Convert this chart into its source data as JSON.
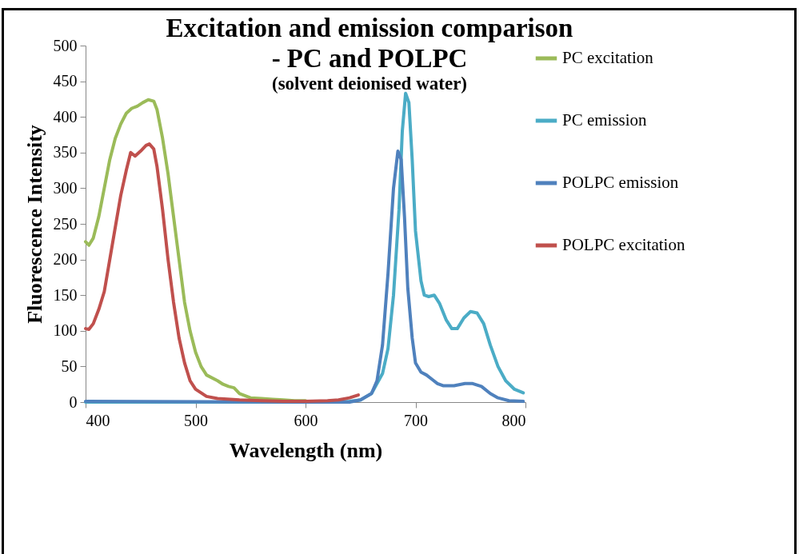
{
  "chart_data": {
    "type": "line",
    "title": "Excitation and emission comparison\n- PC and POLPC",
    "subtitle": "(solvent deionised water)",
    "xlabel": "Wavelength (nm)",
    "ylabel": "Fluorescence Intensity",
    "xlim": [
      400,
      800
    ],
    "xticks": [
      400,
      500,
      600,
      700,
      800
    ],
    "ylim": [
      0,
      500
    ],
    "yticks": [
      0,
      50,
      100,
      150,
      200,
      250,
      300,
      350,
      400,
      450,
      500
    ],
    "grid": false,
    "legend": "right",
    "marker": "none",
    "line_style": "solid",
    "series": [
      {
        "name": "PC excitation",
        "color": "#9bbb59",
        "x": [
          400,
          403,
          407,
          412,
          417,
          422,
          427,
          432,
          437,
          442,
          447,
          452,
          457,
          462,
          465,
          470,
          475,
          480,
          485,
          490,
          495,
          500,
          505,
          510,
          520,
          525,
          530,
          535,
          540,
          550,
          560,
          570,
          580,
          590,
          600
        ],
        "values": [
          225,
          220,
          230,
          260,
          300,
          340,
          370,
          390,
          405,
          412,
          415,
          420,
          424,
          422,
          410,
          370,
          320,
          260,
          200,
          140,
          100,
          70,
          50,
          38,
          30,
          25,
          22,
          20,
          12,
          6,
          5,
          4,
          3,
          2,
          2
        ]
      },
      {
        "name": "PC emission",
        "color": "#4bacc6",
        "x": [
          400,
          600,
          640,
          650,
          660,
          670,
          675,
          680,
          685,
          688,
          691,
          694,
          697,
          700,
          705,
          708,
          712,
          717,
          722,
          728,
          733,
          738,
          744,
          750,
          756,
          762,
          768,
          775,
          782,
          790,
          798
        ],
        "values": [
          0,
          0,
          1,
          3,
          12,
          40,
          75,
          150,
          270,
          380,
          433,
          420,
          340,
          240,
          170,
          150,
          148,
          150,
          138,
          115,
          103,
          103,
          118,
          127,
          125,
          110,
          80,
          50,
          30,
          18,
          13
        ]
      },
      {
        "name": "POLPC emission",
        "color": "#4f81bd",
        "x": [
          400,
          600,
          640,
          650,
          660,
          665,
          670,
          675,
          680,
          684,
          687,
          690,
          693,
          697,
          700,
          705,
          710,
          715,
          720,
          725,
          735,
          745,
          752,
          760,
          768,
          775,
          785,
          798
        ],
        "values": [
          1,
          0,
          0,
          3,
          12,
          30,
          80,
          180,
          300,
          352,
          340,
          260,
          160,
          90,
          55,
          42,
          38,
          32,
          26,
          23,
          23,
          26,
          26,
          22,
          12,
          6,
          2,
          1
        ]
      },
      {
        "name": "POLPC excitation",
        "color": "#c0504d",
        "x": [
          400,
          403,
          407,
          412,
          417,
          422,
          427,
          432,
          437,
          441,
          445,
          450,
          455,
          458,
          462,
          465,
          470,
          475,
          480,
          485,
          490,
          495,
          500,
          510,
          520,
          540,
          560,
          580,
          600,
          620,
          630,
          640,
          648
        ],
        "values": [
          103,
          102,
          110,
          130,
          155,
          200,
          245,
          290,
          325,
          350,
          345,
          352,
          360,
          362,
          355,
          330,
          270,
          200,
          140,
          90,
          55,
          30,
          18,
          8,
          5,
          3,
          2,
          1,
          1,
          2,
          3,
          6,
          10
        ]
      }
    ]
  }
}
